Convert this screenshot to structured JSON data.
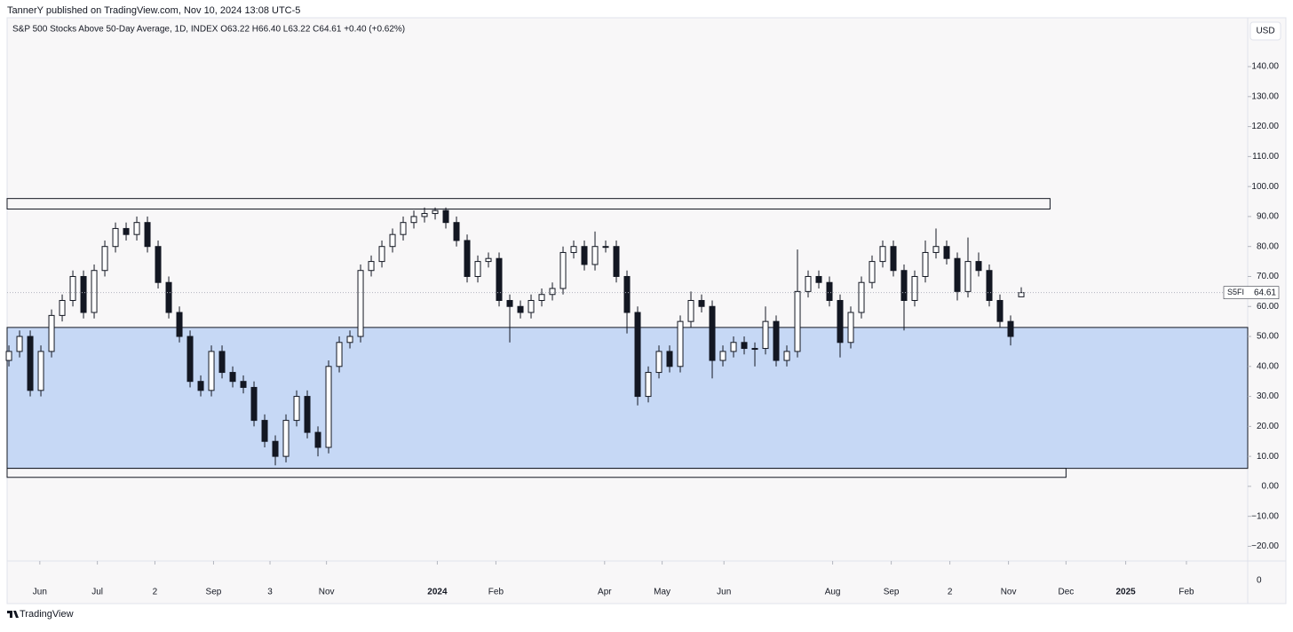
{
  "header": "TannerY published on TradingView.com, Nov 10, 2024 13:08 UTC-5",
  "footer": "TradingView",
  "chart_data": {
    "type": "candlestick",
    "legend": "S&P 500 Stocks Above 50-Day Average, 1D, INDEX O63.22 H66.40 L63.22 C64.61 +0.40 (+0.62%)",
    "currency": "USD",
    "symbol": "S5FI",
    "pane_label": "0",
    "ylim": [
      -24.9,
      156.3
    ],
    "yticks": [
      {
        "value": -20,
        "label": "−20.00"
      },
      {
        "value": -10,
        "label": "−10.00"
      },
      {
        "value": 0,
        "label": "0.00"
      },
      {
        "value": 10,
        "label": "10.00"
      },
      {
        "value": 20,
        "label": "20.00"
      },
      {
        "value": 30,
        "label": "30.00"
      },
      {
        "value": 40,
        "label": "40.00"
      },
      {
        "value": 50,
        "label": "50.00"
      },
      {
        "value": 60,
        "label": "60.00"
      },
      {
        "value": 70,
        "label": "70.00"
      },
      {
        "value": 80,
        "label": "80.00"
      },
      {
        "value": 90,
        "label": "90.00"
      },
      {
        "value": 100,
        "label": "100.00"
      },
      {
        "value": 110,
        "label": "110.00"
      },
      {
        "value": 120,
        "label": "120.00"
      },
      {
        "value": 130,
        "label": "130.00"
      },
      {
        "value": 140,
        "label": "140.00"
      }
    ],
    "xlim": [
      -0.17,
      116.25
    ],
    "xticks": [
      {
        "value": 2.9,
        "label": "Jun"
      },
      {
        "value": 8.3,
        "label": "Jul"
      },
      {
        "value": 13.7,
        "label": "2"
      },
      {
        "value": 19.2,
        "label": "Sep"
      },
      {
        "value": 24.5,
        "label": "3"
      },
      {
        "value": 29.8,
        "label": "Nov"
      },
      {
        "value": 40.2,
        "label": "2024"
      },
      {
        "value": 45.7,
        "label": "Feb"
      },
      {
        "value": 55.9,
        "label": "Apr"
      },
      {
        "value": 61.3,
        "label": "May"
      },
      {
        "value": 67.1,
        "label": "Jun"
      },
      {
        "value": 77.3,
        "label": "Aug"
      },
      {
        "value": 82.8,
        "label": "Sep"
      },
      {
        "value": 88.3,
        "label": "2"
      },
      {
        "value": 93.8,
        "label": "Nov"
      },
      {
        "value": 99.2,
        "label": "Dec"
      },
      {
        "value": 104.8,
        "label": "2025"
      },
      {
        "value": 110.5,
        "label": "Feb"
      }
    ],
    "zones": [
      {
        "top": 53,
        "bottom": 6,
        "color": "#c6d8f5"
      }
    ],
    "boxes": [
      {
        "top": 96,
        "bottom": 92.5,
        "x": [
          -0.17,
          97.7
        ]
      },
      {
        "top": 6,
        "bottom": 3,
        "x": [
          -0.17,
          99.2
        ]
      }
    ],
    "candles": [
      [
        42,
        47,
        40,
        45
      ],
      [
        45,
        52,
        43,
        50
      ],
      [
        50,
        52,
        30,
        32
      ],
      [
        32,
        47,
        30,
        45
      ],
      [
        45,
        59,
        43,
        57
      ],
      [
        57,
        64,
        55,
        62
      ],
      [
        62,
        72,
        60,
        70
      ],
      [
        70,
        72,
        56,
        58
      ],
      [
        58,
        74,
        56,
        72
      ],
      [
        72,
        82,
        70,
        80
      ],
      [
        80,
        88,
        78,
        86
      ],
      [
        86,
        88,
        82,
        84
      ],
      [
        84,
        90,
        82,
        88
      ],
      [
        88,
        90,
        78,
        80
      ],
      [
        80,
        82,
        66,
        68
      ],
      [
        68,
        70,
        56,
        58
      ],
      [
        58,
        60,
        48,
        50
      ],
      [
        50,
        52,
        33,
        35
      ],
      [
        35,
        37,
        30,
        32
      ],
      [
        32,
        47,
        30,
        45
      ],
      [
        45,
        47,
        36,
        38
      ],
      [
        38,
        40,
        33,
        35
      ],
      [
        35,
        37,
        31,
        33
      ],
      [
        33,
        35,
        20,
        22
      ],
      [
        22,
        24,
        13,
        15
      ],
      [
        15,
        17,
        7,
        10
      ],
      [
        10,
        24,
        8,
        22
      ],
      [
        22,
        32,
        20,
        30
      ],
      [
        30,
        32,
        16,
        18
      ],
      [
        18,
        20,
        10,
        13
      ],
      [
        13,
        42,
        11,
        40
      ],
      [
        40,
        50,
        38,
        48
      ],
      [
        48,
        52,
        46,
        50
      ],
      [
        50,
        74,
        48,
        72
      ],
      [
        72,
        77,
        70,
        75
      ],
      [
        75,
        82,
        73,
        80
      ],
      [
        80,
        86,
        78,
        84
      ],
      [
        84,
        90,
        82,
        88
      ],
      [
        88,
        92,
        86,
        90
      ],
      [
        90,
        93,
        88,
        91
      ],
      [
        91,
        93,
        89,
        92
      ],
      [
        92,
        93,
        86,
        88
      ],
      [
        88,
        90,
        80,
        82
      ],
      [
        82,
        84,
        68,
        70
      ],
      [
        70,
        77,
        68,
        75
      ],
      [
        75,
        78,
        73,
        76
      ],
      [
        76,
        78,
        60,
        62
      ],
      [
        62,
        64,
        48,
        60
      ],
      [
        60,
        62,
        56,
        58
      ],
      [
        58,
        64,
        56,
        62
      ],
      [
        62,
        66,
        60,
        64
      ],
      [
        64,
        68,
        62,
        66
      ],
      [
        66,
        80,
        64,
        78
      ],
      [
        78,
        82,
        76,
        80
      ],
      [
        80,
        82,
        72,
        74
      ],
      [
        74,
        85,
        72,
        80
      ],
      [
        80,
        82,
        78,
        80
      ],
      [
        80,
        82,
        68,
        70
      ],
      [
        70,
        72,
        51,
        58
      ],
      [
        58,
        60,
        27,
        30
      ],
      [
        30,
        40,
        28,
        38
      ],
      [
        38,
        47,
        36,
        45
      ],
      [
        45,
        47,
        38,
        40
      ],
      [
        40,
        57,
        38,
        55
      ],
      [
        55,
        65,
        53,
        62
      ],
      [
        62,
        64,
        58,
        60
      ],
      [
        60,
        62,
        36,
        42
      ],
      [
        42,
        47,
        40,
        45
      ],
      [
        45,
        50,
        43,
        48
      ],
      [
        48,
        50,
        44,
        46
      ],
      [
        46,
        48,
        40,
        46
      ],
      [
        46,
        60,
        44,
        55
      ],
      [
        55,
        57,
        40,
        42
      ],
      [
        42,
        47,
        40,
        45
      ],
      [
        45,
        79,
        43,
        65
      ],
      [
        65,
        72,
        63,
        70
      ],
      [
        70,
        72,
        66,
        68
      ],
      [
        68,
        70,
        60,
        62
      ],
      [
        62,
        64,
        43,
        48
      ],
      [
        48,
        60,
        46,
        58
      ],
      [
        58,
        70,
        56,
        68
      ],
      [
        68,
        77,
        66,
        75
      ],
      [
        75,
        82,
        73,
        80
      ],
      [
        80,
        82,
        70,
        72
      ],
      [
        72,
        74,
        52,
        62
      ],
      [
        62,
        72,
        60,
        70
      ],
      [
        70,
        82,
        68,
        78
      ],
      [
        78,
        86,
        76,
        80
      ],
      [
        80,
        82,
        74,
        76
      ],
      [
        76,
        78,
        62,
        65
      ],
      [
        65,
        83,
        63,
        75
      ],
      [
        75,
        78,
        70,
        72
      ],
      [
        72,
        74,
        60,
        62
      ],
      [
        62,
        64,
        53,
        55
      ],
      [
        55,
        57,
        47,
        50
      ],
      [
        63.22,
        66.4,
        63.22,
        64.61
      ]
    ]
  }
}
